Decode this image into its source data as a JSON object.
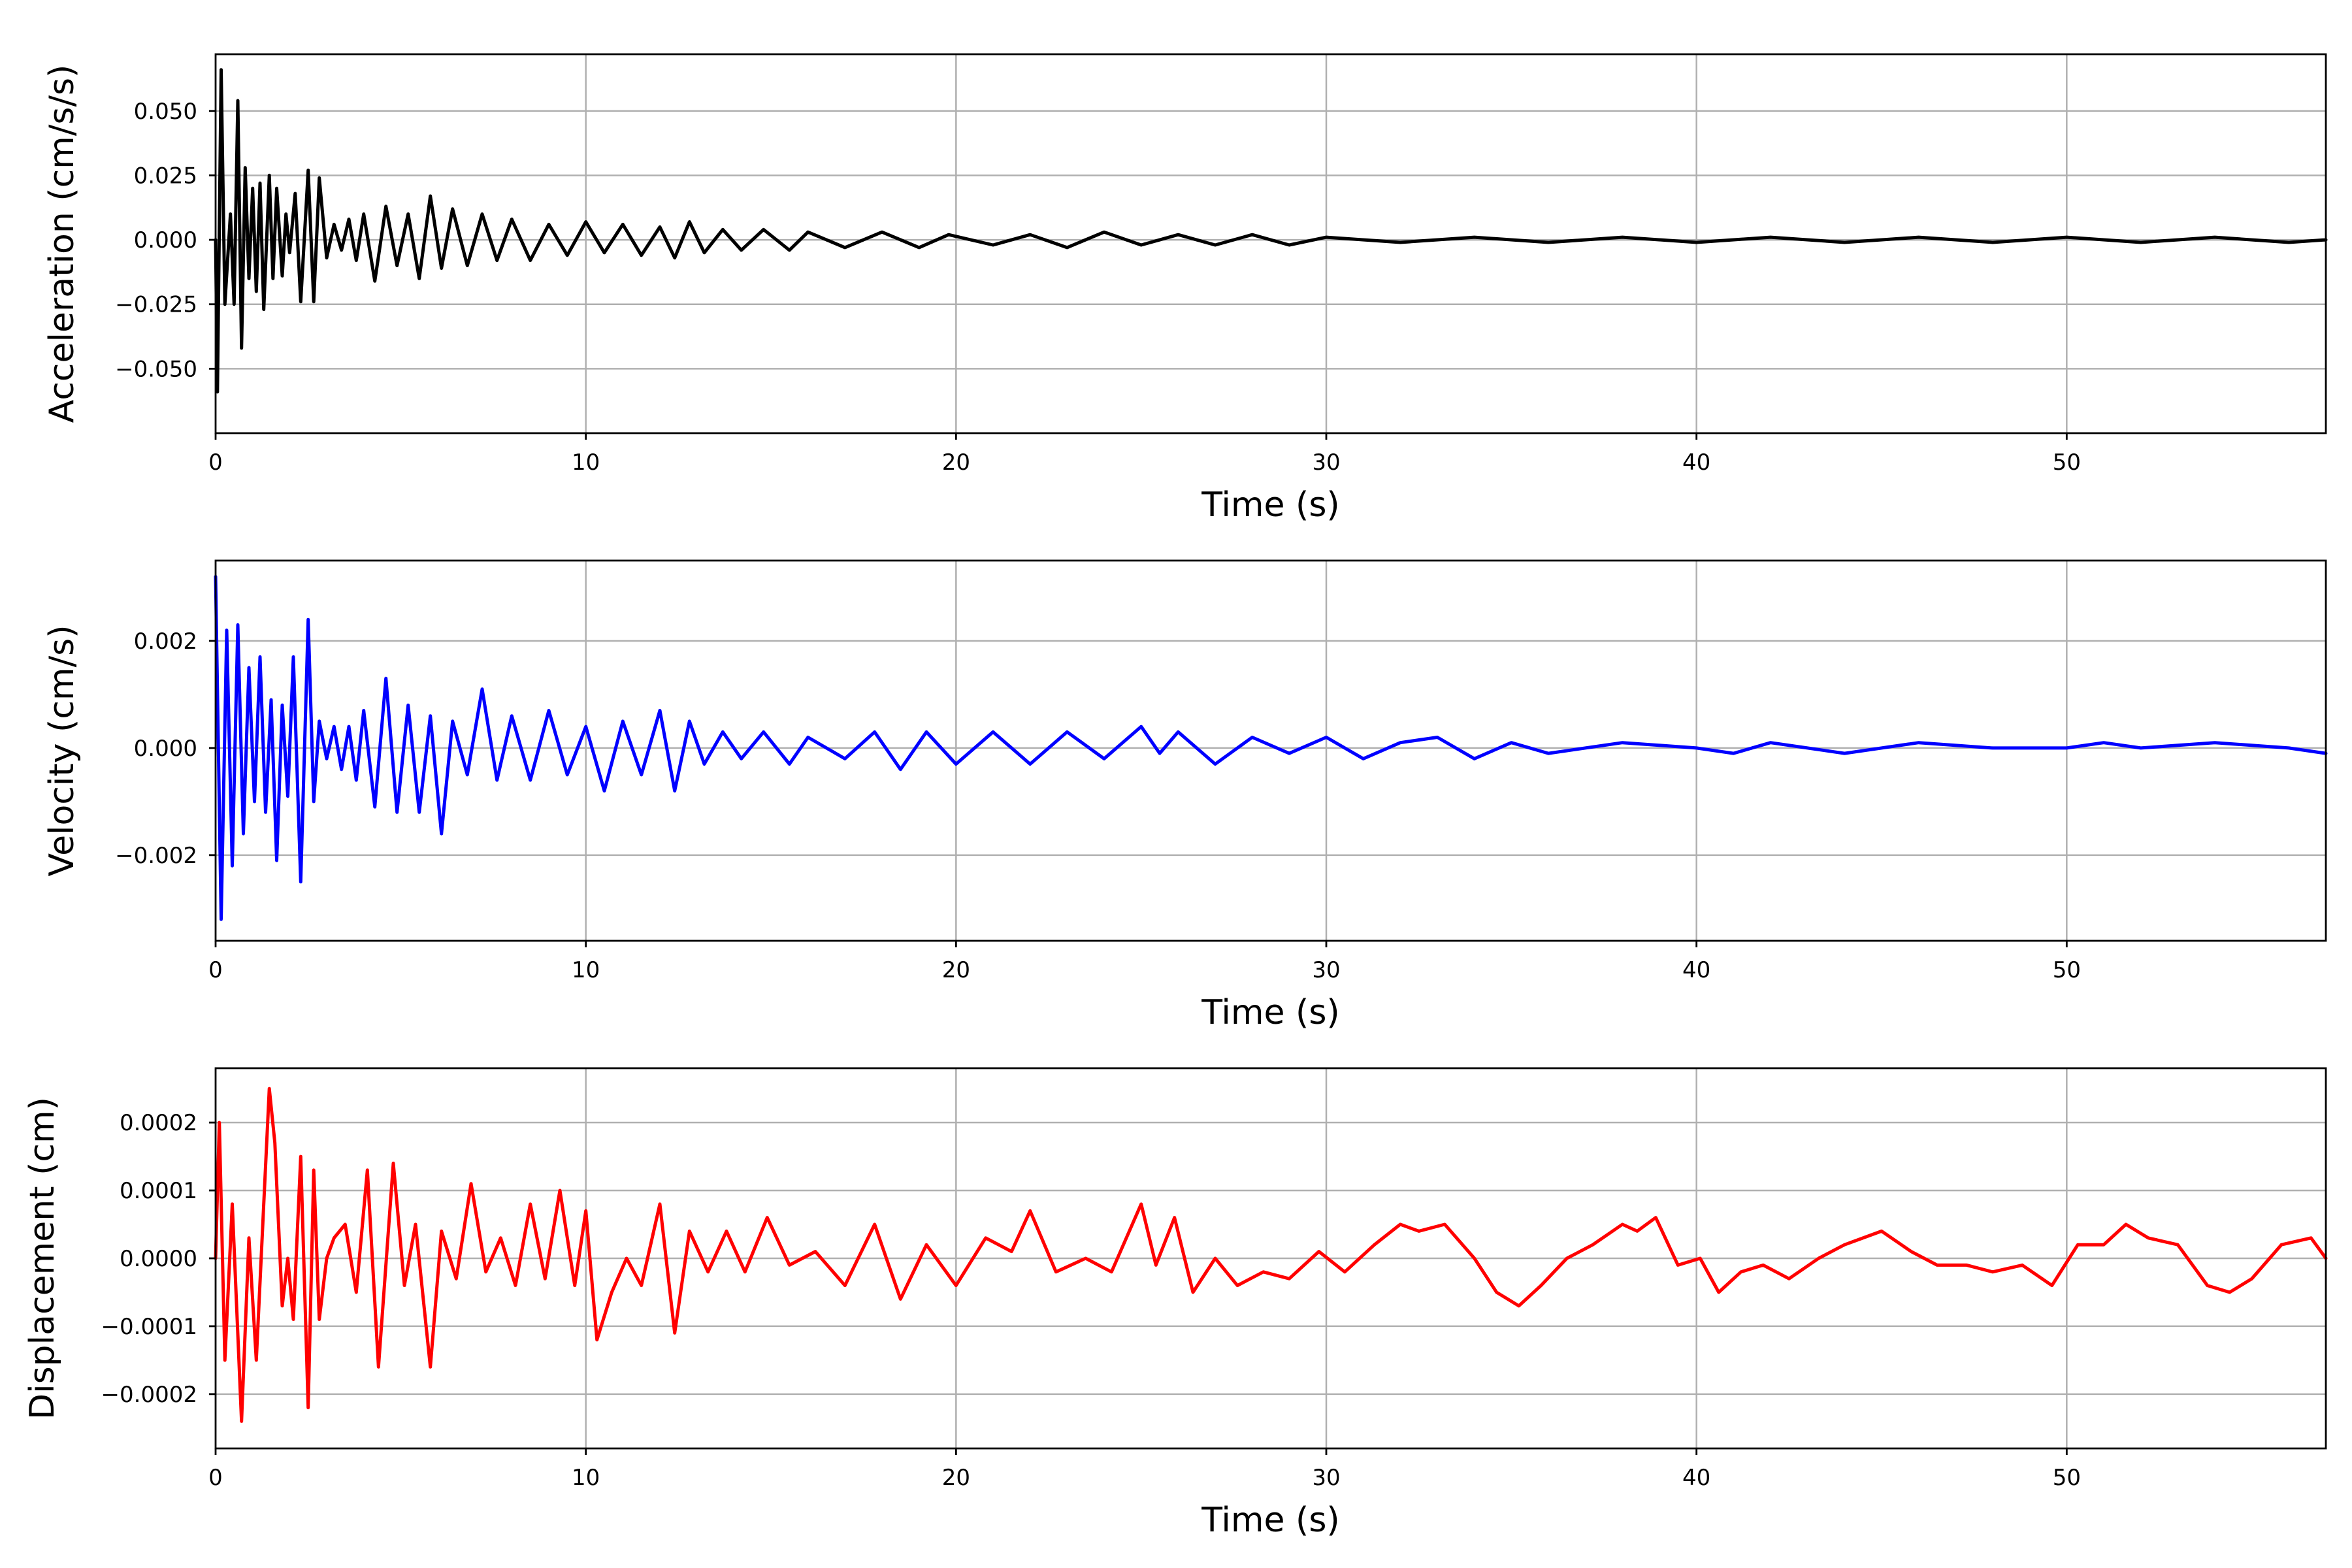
{
  "chart_data": [
    {
      "type": "line",
      "xlabel": "Time (s)",
      "ylabel": "Acceleration (cm/s/s)",
      "xlim": [
        0,
        57
      ],
      "ylim": [
        -0.075,
        0.072
      ],
      "xticks": [
        0,
        10,
        20,
        30,
        40,
        50
      ],
      "xtick_labels": [
        "0",
        "10",
        "20",
        "30",
        "40",
        "50"
      ],
      "yticks": [
        -0.05,
        -0.025,
        0.0,
        0.025,
        0.05
      ],
      "ytick_labels": [
        "−0.050",
        "−0.025",
        "0.000",
        "0.025",
        "0.050"
      ],
      "grid": true,
      "color": "#000000",
      "series": [
        {
          "x": [
            0,
            0.05,
            0.15,
            0.25,
            0.4,
            0.5,
            0.6,
            0.7,
            0.8,
            0.9,
            1.0,
            1.1,
            1.2,
            1.3,
            1.45,
            1.55,
            1.65,
            1.8,
            1.9,
            2.0,
            2.15,
            2.3,
            2.5,
            2.65,
            2.8,
            3.0,
            3.2,
            3.4,
            3.6,
            3.8,
            4.0,
            4.3,
            4.6,
            4.9,
            5.2,
            5.5,
            5.8,
            6.1,
            6.4,
            6.8,
            7.2,
            7.6,
            8.0,
            8.5,
            9.0,
            9.5,
            10.0,
            10.5,
            11.0,
            11.5,
            12.0,
            12.4,
            12.8,
            13.2,
            13.7,
            14.2,
            14.8,
            15.5,
            16.0,
            17.0,
            18.0,
            19.0,
            19.8,
            21.0,
            22.0,
            23.0,
            24.0,
            25.0,
            26.0,
            27.0,
            28.0,
            29.0,
            30.0,
            32.0,
            34.0,
            36.0,
            38.0,
            40.0,
            42.0,
            44.0,
            46.0,
            48.0,
            50.0,
            52.0,
            54.0,
            56.0,
            57.0
          ],
          "y": [
            0.0,
            -0.059,
            0.066,
            -0.025,
            0.01,
            -0.025,
            0.054,
            -0.042,
            0.028,
            -0.015,
            0.02,
            -0.02,
            0.022,
            -0.027,
            0.025,
            -0.015,
            0.02,
            -0.014,
            0.01,
            -0.005,
            0.018,
            -0.024,
            0.027,
            -0.024,
            0.024,
            -0.007,
            0.006,
            -0.004,
            0.008,
            -0.008,
            0.01,
            -0.016,
            0.013,
            -0.01,
            0.01,
            -0.015,
            0.017,
            -0.011,
            0.012,
            -0.01,
            0.01,
            -0.008,
            0.008,
            -0.008,
            0.006,
            -0.006,
            0.007,
            -0.005,
            0.006,
            -0.006,
            0.005,
            -0.007,
            0.007,
            -0.005,
            0.004,
            -0.004,
            0.004,
            -0.004,
            0.003,
            -0.003,
            0.003,
            -0.003,
            0.002,
            -0.002,
            0.002,
            -0.003,
            0.003,
            -0.002,
            0.002,
            -0.002,
            0.002,
            -0.002,
            0.001,
            -0.001,
            0.001,
            -0.001,
            0.001,
            -0.001,
            0.001,
            -0.001,
            0.001,
            -0.001,
            0.001,
            -0.001,
            0.001,
            -0.001,
            0.0
          ]
        }
      ]
    },
    {
      "type": "line",
      "xlabel": "Time (s)",
      "ylabel": "Velocity (cm/s)",
      "xlim": [
        0,
        57
      ],
      "ylim": [
        -0.0036,
        0.0035
      ],
      "xticks": [
        0,
        10,
        20,
        30,
        40,
        50
      ],
      "xtick_labels": [
        "0",
        "10",
        "20",
        "30",
        "40",
        "50"
      ],
      "yticks": [
        -0.002,
        0.0,
        0.002
      ],
      "ytick_labels": [
        "−0.002",
        "0.000",
        "0.002"
      ],
      "grid": true,
      "color": "#0000ff",
      "series": [
        {
          "x": [
            0,
            0.15,
            0.3,
            0.45,
            0.6,
            0.75,
            0.9,
            1.05,
            1.2,
            1.35,
            1.5,
            1.65,
            1.8,
            1.95,
            2.1,
            2.3,
            2.5,
            2.65,
            2.8,
            3.0,
            3.2,
            3.4,
            3.6,
            3.8,
            4.0,
            4.3,
            4.6,
            4.9,
            5.2,
            5.5,
            5.8,
            6.1,
            6.4,
            6.8,
            7.2,
            7.6,
            8.0,
            8.5,
            9.0,
            9.5,
            10.0,
            10.5,
            11.0,
            11.5,
            12.0,
            12.4,
            12.8,
            13.2,
            13.7,
            14.2,
            14.8,
            15.5,
            16.0,
            17.0,
            17.8,
            18.5,
            19.2,
            20.0,
            21.0,
            22.0,
            23.0,
            24.0,
            25.0,
            25.5,
            26.0,
            27.0,
            28.0,
            29.0,
            30.0,
            31.0,
            32.0,
            33.0,
            34.0,
            35.0,
            36.0,
            38.0,
            40.0,
            41.0,
            42.0,
            44.0,
            46.0,
            48.0,
            50.0,
            51.0,
            52.0,
            54.0,
            56.0,
            57.0
          ],
          "y": [
            0.0032,
            -0.0032,
            0.0022,
            -0.0022,
            0.0023,
            -0.0016,
            0.0015,
            -0.001,
            0.0017,
            -0.0012,
            0.0009,
            -0.0021,
            0.0008,
            -0.0009,
            0.0017,
            -0.0025,
            0.0024,
            -0.001,
            0.0005,
            -0.0002,
            0.0004,
            -0.0004,
            0.0004,
            -0.0006,
            0.0007,
            -0.0011,
            0.0013,
            -0.0012,
            0.0008,
            -0.0012,
            0.0006,
            -0.0016,
            0.0005,
            -0.0005,
            0.0011,
            -0.0006,
            0.0006,
            -0.0006,
            0.0007,
            -0.0005,
            0.0004,
            -0.0008,
            0.0005,
            -0.0005,
            0.0007,
            -0.0008,
            0.0005,
            -0.0003,
            0.0003,
            -0.0002,
            0.0003,
            -0.0003,
            0.0002,
            -0.0002,
            0.0003,
            -0.0004,
            0.0003,
            -0.0003,
            0.0003,
            -0.0003,
            0.0003,
            -0.0002,
            0.0004,
            -0.0001,
            0.0003,
            -0.0003,
            0.0002,
            -0.0001,
            0.0002,
            -0.0002,
            0.0001,
            0.0002,
            -0.0002,
            0.0001,
            -0.0001,
            0.0001,
            0.0,
            -0.0001,
            0.0001,
            -0.0001,
            0.0001,
            0.0,
            0.0,
            0.0001,
            0.0,
            0.0001,
            0.0,
            -0.0001
          ]
        }
      ]
    },
    {
      "type": "line",
      "xlabel": "Time (s)",
      "ylabel": "Displacement (cm)",
      "xlim": [
        0,
        57
      ],
      "ylim": [
        -0.00028,
        0.00028
      ],
      "xticks": [
        0,
        10,
        20,
        30,
        40,
        50
      ],
      "xtick_labels": [
        "0",
        "10",
        "20",
        "30",
        "40",
        "50"
      ],
      "yticks": [
        -0.0002,
        -0.0001,
        0.0,
        0.0001,
        0.0002
      ],
      "ytick_labels": [
        "−0.0002",
        "−0.0001",
        "0.0000",
        "0.0001",
        "0.0002"
      ],
      "grid": true,
      "color": "#ff0000",
      "series": [
        {
          "x": [
            0,
            0.1,
            0.25,
            0.45,
            0.7,
            0.9,
            1.1,
            1.3,
            1.45,
            1.6,
            1.8,
            1.95,
            2.1,
            2.3,
            2.5,
            2.65,
            2.8,
            3.0,
            3.2,
            3.5,
            3.8,
            4.1,
            4.4,
            4.8,
            5.1,
            5.4,
            5.8,
            6.1,
            6.5,
            6.9,
            7.3,
            7.7,
            8.1,
            8.5,
            8.9,
            9.3,
            9.7,
            10.0,
            10.3,
            10.7,
            11.1,
            11.5,
            12.0,
            12.4,
            12.8,
            13.3,
            13.8,
            14.3,
            14.9,
            15.5,
            16.2,
            17.0,
            17.8,
            18.5,
            19.2,
            20.0,
            20.8,
            21.5,
            22.0,
            22.7,
            23.5,
            24.2,
            25.0,
            25.4,
            25.9,
            26.4,
            27.0,
            27.6,
            28.3,
            29.0,
            29.8,
            30.5,
            31.3,
            32.0,
            32.5,
            33.2,
            34.0,
            34.6,
            35.2,
            35.8,
            36.5,
            37.2,
            38.0,
            38.4,
            38.9,
            39.5,
            40.1,
            40.6,
            41.2,
            41.8,
            42.5,
            43.3,
            44.0,
            45.0,
            45.8,
            46.5,
            47.3,
            48.0,
            48.8,
            49.6,
            50.3,
            51.0,
            51.6,
            52.2,
            53.0,
            53.8,
            54.4,
            55.0,
            55.8,
            56.6,
            57.0
          ],
          "y": [
            0.0,
            0.0002,
            -0.00015,
            8e-05,
            -0.00024,
            3e-05,
            -0.00015,
            8e-05,
            0.00025,
            0.00017,
            -7e-05,
            0.0,
            -9e-05,
            0.00015,
            -0.00022,
            0.00013,
            -9e-05,
            0.0,
            3e-05,
            5e-05,
            -5e-05,
            0.00013,
            -0.00016,
            0.00014,
            -4e-05,
            5e-05,
            -0.00016,
            4e-05,
            -3e-05,
            0.00011,
            -2e-05,
            3e-05,
            -4e-05,
            8e-05,
            -3e-05,
            0.0001,
            -4e-05,
            7e-05,
            -0.00012,
            -5e-05,
            0.0,
            -4e-05,
            8e-05,
            -0.00011,
            4e-05,
            -2e-05,
            4e-05,
            -2e-05,
            6e-05,
            -1e-05,
            1e-05,
            -4e-05,
            5e-05,
            -6e-05,
            2e-05,
            -4e-05,
            3e-05,
            1e-05,
            7e-05,
            -2e-05,
            0.0,
            -2e-05,
            8e-05,
            -1e-05,
            6e-05,
            -5e-05,
            0.0,
            -4e-05,
            -2e-05,
            -3e-05,
            1e-05,
            -2e-05,
            2e-05,
            5e-05,
            4e-05,
            5e-05,
            0.0,
            -5e-05,
            -7e-05,
            -4e-05,
            0.0,
            2e-05,
            5e-05,
            4e-05,
            6e-05,
            -1e-05,
            0.0,
            -5e-05,
            -2e-05,
            -1e-05,
            -3e-05,
            0.0,
            2e-05,
            4e-05,
            1e-05,
            -1e-05,
            -1e-05,
            -2e-05,
            -1e-05,
            -4e-05,
            2e-05,
            2e-05,
            5e-05,
            3e-05,
            2e-05,
            -4e-05,
            -5e-05,
            -3e-05,
            2e-05,
            3e-05,
            0.0
          ]
        }
      ]
    }
  ]
}
